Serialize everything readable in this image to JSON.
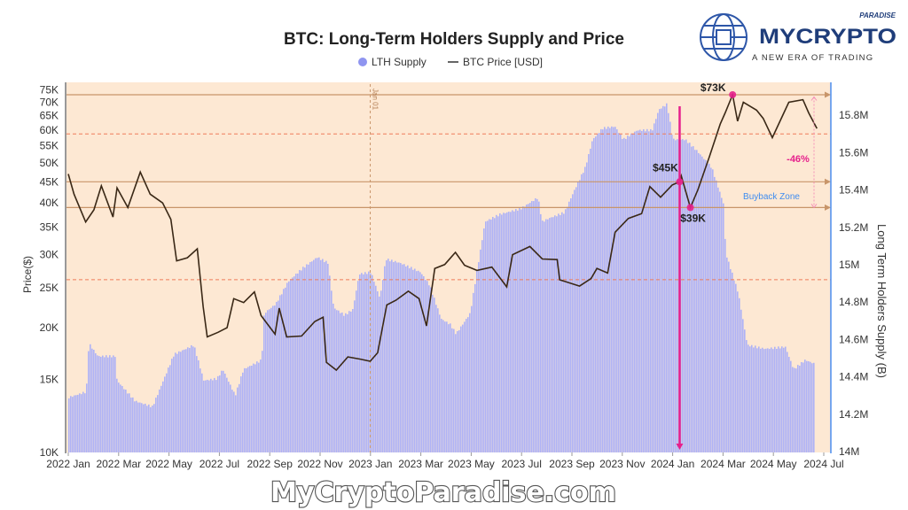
{
  "chart_data": {
    "type": "bar+line",
    "title": "BTC: Long-Term Holders Supply and Price",
    "legend": {
      "placement": "top",
      "items": [
        {
          "label": "LTH Supply",
          "marker": "dot"
        },
        {
          "label": "BTC Price [USD]",
          "marker": "line"
        }
      ]
    },
    "ylabel_left": "Price($)",
    "ylabel_right": "Long Term Holders Supply (B)",
    "y_left_scale": "log",
    "y_left_range": [
      10000,
      75000
    ],
    "y_right_range": [
      14000000,
      15900000
    ],
    "x_range": [
      "2022-01-01",
      "2024-07-01"
    ],
    "x_ticks": [
      "2022 Jan",
      "2022 Mar",
      "2022 May",
      "2022 Jul",
      "2022 Sep",
      "2022 Nov",
      "2023 Jan",
      "2023 Mar",
      "2023 May",
      "2023 Jul",
      "2023 Sep",
      "2023 Nov",
      "2024 Jan",
      "2024 Mar",
      "2024 May",
      "2024 Jul"
    ],
    "y_left_ticks": [
      {
        "label": "75K",
        "value": 75000
      },
      {
        "label": "70K",
        "value": 70000
      },
      {
        "label": "65K",
        "value": 65000
      },
      {
        "label": "60K",
        "value": 60000
      },
      {
        "label": "55K",
        "value": 55000
      },
      {
        "label": "50K",
        "value": 50000
      },
      {
        "label": "45K",
        "value": 45000
      },
      {
        "label": "40K",
        "value": 40000
      },
      {
        "label": "35K",
        "value": 35000
      },
      {
        "label": "30K",
        "value": 30000
      },
      {
        "label": "25K",
        "value": 25000
      },
      {
        "label": "20K",
        "value": 20000
      },
      {
        "label": "15K",
        "value": 15000
      },
      {
        "label": "10K",
        "value": 10000
      }
    ],
    "y_right_ticks": [
      {
        "label": "15.8M",
        "value": 15.8
      },
      {
        "label": "15.6M",
        "value": 15.6
      },
      {
        "label": "15.4M",
        "value": 15.4
      },
      {
        "label": "15.2M",
        "value": 15.2
      },
      {
        "label": "15M",
        "value": 15.0
      },
      {
        "label": "14.8M",
        "value": 14.8
      },
      {
        "label": "14.6M",
        "value": 14.6
      },
      {
        "label": "14.4M",
        "value": 14.4
      },
      {
        "label": "14.2M",
        "value": 14.2
      },
      {
        "label": "14M",
        "value": 14.0
      }
    ],
    "series": [
      {
        "name": "LTH Supply",
        "type": "bar",
        "color": "#aeb2f6",
        "unit": "M BTC",
        "points": [
          [
            "2022-01-01",
            14.29
          ],
          [
            "2022-01-22",
            14.32
          ],
          [
            "2022-01-25",
            14.58
          ],
          [
            "2022-02-05",
            14.51
          ],
          [
            "2022-02-26",
            14.51
          ],
          [
            "2022-02-28",
            14.38
          ],
          [
            "2022-03-22",
            14.27
          ],
          [
            "2022-04-12",
            14.24
          ],
          [
            "2022-05-08",
            14.52
          ],
          [
            "2022-06-01",
            14.57
          ],
          [
            "2022-06-13",
            14.38
          ],
          [
            "2022-06-29",
            14.39
          ],
          [
            "2022-07-06",
            14.44
          ],
          [
            "2022-07-21",
            14.3
          ],
          [
            "2022-07-31",
            14.44
          ],
          [
            "2022-08-22",
            14.49
          ],
          [
            "2022-08-25",
            14.74
          ],
          [
            "2022-09-08",
            14.79
          ],
          [
            "2022-09-23",
            14.91
          ],
          [
            "2022-10-10",
            14.98
          ],
          [
            "2022-10-28",
            15.04
          ],
          [
            "2022-11-10",
            15.01
          ],
          [
            "2022-11-17",
            14.77
          ],
          [
            "2022-11-30",
            14.73
          ],
          [
            "2022-12-10",
            14.76
          ],
          [
            "2022-12-18",
            14.95
          ],
          [
            "2023-01-01",
            14.96
          ],
          [
            "2023-01-12",
            14.82
          ],
          [
            "2023-01-19",
            15.03
          ],
          [
            "2023-02-05",
            15.01
          ],
          [
            "2023-03-02",
            14.96
          ],
          [
            "2023-03-13",
            14.89
          ],
          [
            "2023-03-27",
            14.71
          ],
          [
            "2023-04-07",
            14.68
          ],
          [
            "2023-04-14",
            14.63
          ],
          [
            "2023-05-01",
            14.74
          ],
          [
            "2023-05-09",
            14.96
          ],
          [
            "2023-05-19",
            15.23
          ],
          [
            "2023-06-06",
            15.27
          ],
          [
            "2023-07-01",
            15.3
          ],
          [
            "2023-07-22",
            15.36
          ],
          [
            "2023-07-27",
            15.23
          ],
          [
            "2023-08-05",
            15.25
          ],
          [
            "2023-08-23",
            15.28
          ],
          [
            "2023-09-03",
            15.39
          ],
          [
            "2023-09-17",
            15.52
          ],
          [
            "2023-09-26",
            15.67
          ],
          [
            "2023-10-08",
            15.73
          ],
          [
            "2023-10-23",
            15.74
          ],
          [
            "2023-11-02",
            15.67
          ],
          [
            "2023-11-19",
            15.72
          ],
          [
            "2023-12-07",
            15.72
          ],
          [
            "2023-12-15",
            15.83
          ],
          [
            "2023-12-25",
            15.86
          ],
          [
            "2024-01-01",
            15.67
          ],
          [
            "2024-01-16",
            15.67
          ],
          [
            "2024-01-30",
            15.61
          ],
          [
            "2024-02-17",
            15.52
          ],
          [
            "2024-03-02",
            15.33
          ],
          [
            "2024-03-05",
            15.06
          ],
          [
            "2024-03-20",
            14.85
          ],
          [
            "2024-03-31",
            14.57
          ],
          [
            "2024-04-21",
            14.55
          ],
          [
            "2024-05-16",
            14.56
          ],
          [
            "2024-05-26",
            14.44
          ],
          [
            "2024-06-09",
            14.49
          ],
          [
            "2024-06-20",
            14.47
          ]
        ]
      },
      {
        "name": "BTC Price [USD]",
        "type": "line",
        "color": "#3a2816",
        "points": [
          [
            "2022-01-01",
            47000
          ],
          [
            "2022-01-08",
            42000
          ],
          [
            "2022-01-22",
            36000
          ],
          [
            "2022-02-01",
            38500
          ],
          [
            "2022-02-10",
            44000
          ],
          [
            "2022-02-24",
            37000
          ],
          [
            "2022-03-01",
            43500
          ],
          [
            "2022-03-14",
            39000
          ],
          [
            "2022-03-29",
            47500
          ],
          [
            "2022-04-10",
            42000
          ],
          [
            "2022-04-25",
            40000
          ],
          [
            "2022-05-05",
            36500
          ],
          [
            "2022-05-12",
            29000
          ],
          [
            "2022-05-25",
            29500
          ],
          [
            "2022-06-06",
            31000
          ],
          [
            "2022-06-13",
            22500
          ],
          [
            "2022-06-18",
            19000
          ],
          [
            "2022-07-01",
            19500
          ],
          [
            "2022-07-12",
            20000
          ],
          [
            "2022-07-20",
            23500
          ],
          [
            "2022-08-01",
            23000
          ],
          [
            "2022-08-14",
            24400
          ],
          [
            "2022-08-22",
            21400
          ],
          [
            "2022-09-08",
            19300
          ],
          [
            "2022-09-13",
            22300
          ],
          [
            "2022-09-22",
            19000
          ],
          [
            "2022-10-10",
            19100
          ],
          [
            "2022-10-26",
            20700
          ],
          [
            "2022-11-05",
            21200
          ],
          [
            "2022-11-09",
            16500
          ],
          [
            "2022-11-21",
            15800
          ],
          [
            "2022-12-05",
            17000
          ],
          [
            "2022-12-20",
            16800
          ],
          [
            "2023-01-01",
            16600
          ],
          [
            "2023-01-10",
            17400
          ],
          [
            "2023-01-21",
            22700
          ],
          [
            "2023-02-01",
            23300
          ],
          [
            "2023-02-16",
            24500
          ],
          [
            "2023-03-01",
            23500
          ],
          [
            "2023-03-10",
            20200
          ],
          [
            "2023-03-20",
            27800
          ],
          [
            "2023-04-01",
            28400
          ],
          [
            "2023-04-14",
            30400
          ],
          [
            "2023-04-25",
            28300
          ],
          [
            "2023-05-10",
            27500
          ],
          [
            "2023-05-28",
            28000
          ],
          [
            "2023-06-15",
            25100
          ],
          [
            "2023-06-22",
            30000
          ],
          [
            "2023-07-13",
            31400
          ],
          [
            "2023-07-28",
            29300
          ],
          [
            "2023-08-15",
            29200
          ],
          [
            "2023-08-18",
            26100
          ],
          [
            "2023-09-11",
            25200
          ],
          [
            "2023-09-25",
            26300
          ],
          [
            "2023-10-02",
            27800
          ],
          [
            "2023-10-15",
            27100
          ],
          [
            "2023-10-24",
            34000
          ],
          [
            "2023-11-09",
            36700
          ],
          [
            "2023-11-25",
            37700
          ],
          [
            "2023-12-05",
            43800
          ],
          [
            "2023-12-18",
            41300
          ],
          [
            "2024-01-01",
            44200
          ],
          [
            "2024-01-10",
            45000
          ],
          [
            "2024-01-12",
            46500
          ],
          [
            "2024-01-23",
            39000
          ],
          [
            "2024-02-01",
            43000
          ],
          [
            "2024-02-15",
            51800
          ],
          [
            "2024-02-28",
            62000
          ],
          [
            "2024-03-05",
            66000
          ],
          [
            "2024-03-14",
            73000
          ],
          [
            "2024-03-20",
            63000
          ],
          [
            "2024-03-27",
            70000
          ],
          [
            "2024-04-12",
            67000
          ],
          [
            "2024-04-20",
            64000
          ],
          [
            "2024-05-01",
            57500
          ],
          [
            "2024-05-15",
            66000
          ],
          [
            "2024-05-21",
            70000
          ],
          [
            "2024-06-07",
            71000
          ],
          [
            "2024-06-14",
            66000
          ],
          [
            "2024-06-24",
            60500
          ]
        ]
      }
    ],
    "annotations": {
      "price_levels": [
        {
          "label": "$73K",
          "value": 73000,
          "date": "2024-03-14"
        },
        {
          "label": "$45K",
          "value": 45000,
          "date": "2024-01-10"
        },
        {
          "label": "$39K",
          "value": 39000,
          "date": "2024-01-23"
        }
      ],
      "supply_levels_dashed": [
        15.7,
        14.92
      ],
      "vertical_marker_date": "2024-01-10",
      "jan_line": {
        "label": "Jan 01",
        "date": "2023-01-01"
      },
      "drawdown_label": "-46%",
      "zone_label": "Buyback Zone",
      "colors": {
        "background": "#fde8d3",
        "level_line": "#c8956a",
        "dashed": "#ef7b5a",
        "marker": "#e6208c",
        "zone_text": "#3f8cf0",
        "right_axis": "#4a8ef0"
      }
    }
  },
  "logo": {
    "brand": "MYCRYPTO",
    "tag": "PARADISE",
    "tagline": "A NEW ERA OF TRADING"
  },
  "watermark": "MyCryptoParadise.com"
}
